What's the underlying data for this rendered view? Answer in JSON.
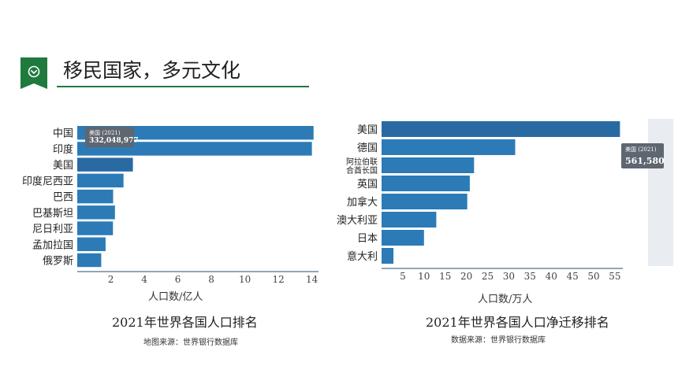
{
  "header": {
    "title": "移民国家，多元文化",
    "badge_icon": "chevron-down-circle-icon",
    "accent_color": "#1f7a3e"
  },
  "colors": {
    "bar": "#2c7bb6",
    "bar_highlight": "#2a6aa3",
    "tooltip_bg": "#5e6670",
    "axis": "#2b4a7a"
  },
  "chart_data": [
    {
      "type": "bar",
      "orientation": "horizontal",
      "categories": [
        "中国",
        "印度",
        "美国",
        "印度尼西亚",
        "巴西",
        "巴基斯坦",
        "尼日利亚",
        "孟加拉国",
        "俄罗斯"
      ],
      "values": [
        14.1,
        14.0,
        3.32,
        2.76,
        2.14,
        2.25,
        2.13,
        1.69,
        1.43
      ],
      "xlim": [
        0,
        14.3
      ],
      "xticks": [
        2,
        4,
        6,
        8,
        10,
        12,
        14
      ],
      "xlabel": "人口数/亿人",
      "caption": "2021年世界各国人口排名",
      "source": "地图来源：世界银行数据库",
      "tooltip": {
        "label": "美国 (2021)",
        "value": "332,048,977"
      },
      "highlight_index": 2
    },
    {
      "type": "bar",
      "orientation": "horizontal",
      "categories": [
        "美国",
        "德国",
        "阿拉伯联合酋长国",
        "英国",
        "加拿大",
        "澳大利亚",
        "日本",
        "意大利"
      ],
      "category_lines": [
        [
          "美国"
        ],
        [
          "德国"
        ],
        [
          "阿拉伯联",
          "合酋长国"
        ],
        [
          "英国"
        ],
        [
          "加拿大"
        ],
        [
          "澳大利亚"
        ],
        [
          "日本"
        ],
        [
          "意大利"
        ]
      ],
      "values": [
        56.2,
        31.5,
        21.8,
        20.8,
        20.2,
        12.9,
        10.0,
        2.8
      ],
      "xlim": [
        0,
        56.5
      ],
      "xticks": [
        5,
        10,
        15,
        20,
        25,
        30,
        35,
        40,
        45,
        50,
        55
      ],
      "xlabel": "人口数/万人",
      "caption": "2021年世界各国人口净迁移排名",
      "source": "数据来源：世界银行数据库",
      "tooltip": {
        "label": "美国 (2021)",
        "value": "561,580"
      },
      "highlight_index": 0
    }
  ]
}
